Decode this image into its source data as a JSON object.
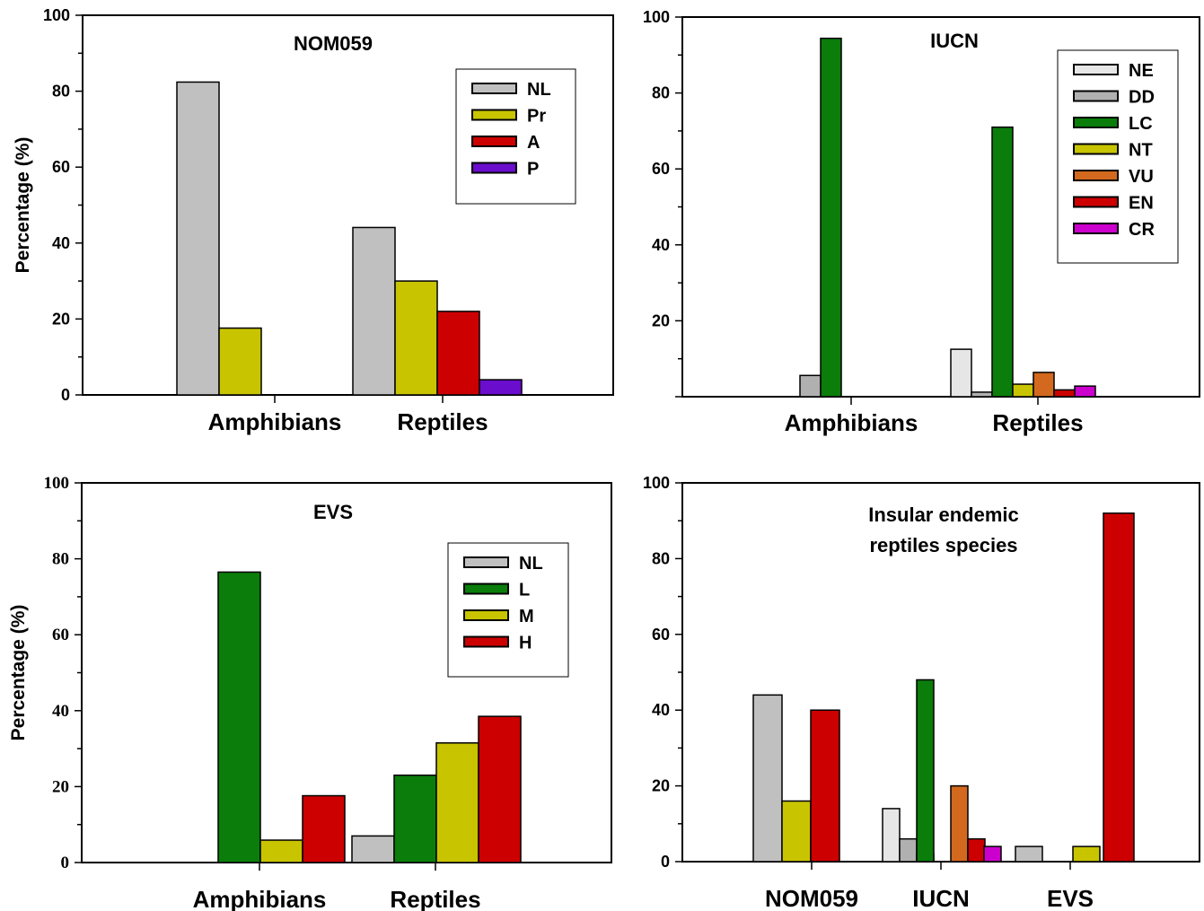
{
  "chart_data": [
    {
      "type": "bar",
      "title": "NOM059",
      "ylabel": "Percentage (%)",
      "ylim": [
        0,
        100
      ],
      "yticks": [
        "0",
        "20",
        "40",
        "60",
        "80",
        "100"
      ],
      "categories": [
        "Amphibians",
        "Reptiles"
      ],
      "series": [
        {
          "name": "NL",
          "color": "#c0c0c0",
          "values": [
            82.4,
            44.1
          ]
        },
        {
          "name": "Pr",
          "color": "#c8c400",
          "values": [
            17.6,
            30.0
          ]
        },
        {
          "name": "A",
          "color": "#cc0000",
          "values": [
            0,
            22.0
          ]
        },
        {
          "name": "P",
          "color": "#6a0dcc",
          "values": [
            0,
            4.0
          ]
        }
      ]
    },
    {
      "type": "bar",
      "title": "IUCN",
      "ylabel": "",
      "ylim": [
        0,
        100
      ],
      "yticks": [
        "20",
        "40",
        "60",
        "80",
        "100"
      ],
      "categories": [
        "Amphibians",
        "Reptiles"
      ],
      "series": [
        {
          "name": "NE",
          "color": "#e6e6e6",
          "values": [
            0,
            12.5
          ]
        },
        {
          "name": "DD",
          "color": "#b0b0b0",
          "values": [
            5.6,
            1.2
          ]
        },
        {
          "name": "LC",
          "color": "#0a7d0a",
          "values": [
            94.4,
            71.0
          ]
        },
        {
          "name": "NT",
          "color": "#c8c400",
          "values": [
            0,
            3.3
          ]
        },
        {
          "name": "VU",
          "color": "#d2691e",
          "values": [
            0,
            6.4
          ]
        },
        {
          "name": "EN",
          "color": "#cc0000",
          "values": [
            0,
            1.8
          ]
        },
        {
          "name": "CR",
          "color": "#cc00cc",
          "values": [
            0,
            2.8
          ]
        }
      ]
    },
    {
      "type": "bar",
      "title": "EVS",
      "ylabel": "Percentage (%)",
      "ylim": [
        0,
        100
      ],
      "yticks": [
        "0",
        "20",
        "40",
        "60",
        "80",
        "100"
      ],
      "categories": [
        "Amphibians",
        "Reptiles"
      ],
      "series": [
        {
          "name": "NL",
          "color": "#c0c0c0",
          "values": [
            0,
            7.0
          ]
        },
        {
          "name": "L",
          "color": "#0a7d0a",
          "values": [
            76.5,
            23.0
          ]
        },
        {
          "name": "M",
          "color": "#c8c400",
          "values": [
            5.9,
            31.5
          ]
        },
        {
          "name": "H",
          "color": "#cc0000",
          "values": [
            17.6,
            38.5
          ]
        }
      ]
    },
    {
      "type": "bar",
      "title": "Insular endemic",
      "title2": "reptiles species",
      "ylabel": "",
      "ylim": [
        0,
        100
      ],
      "yticks": [
        "0",
        "20",
        "40",
        "60",
        "80",
        "100"
      ],
      "categories": [
        "NOM059",
        "IUCN",
        "EVS"
      ],
      "groups": [
        {
          "bars": [
            {
              "color": "#c0c0c0",
              "value": 44
            },
            {
              "color": "#c8c400",
              "value": 16
            },
            {
              "color": "#cc0000",
              "value": 40
            }
          ]
        },
        {
          "bars": [
            {
              "color": "#e6e6e6",
              "value": 14
            },
            {
              "color": "#b0b0b0",
              "value": 6
            },
            {
              "color": "#c8c400",
              "value": 2
            },
            {
              "color": "#0a7d0a",
              "value": 48
            },
            {
              "color": "#d2691e",
              "value": 20
            },
            {
              "color": "#cc0000",
              "value": 6
            },
            {
              "color": "#cc00cc",
              "value": 4
            }
          ]
        },
        {
          "bars": [
            {
              "color": "#c0c0c0",
              "value": 4
            },
            {
              "color": "#c8c400",
              "value": 4
            },
            {
              "color": "#cc0000",
              "value": 92
            }
          ]
        }
      ]
    }
  ]
}
